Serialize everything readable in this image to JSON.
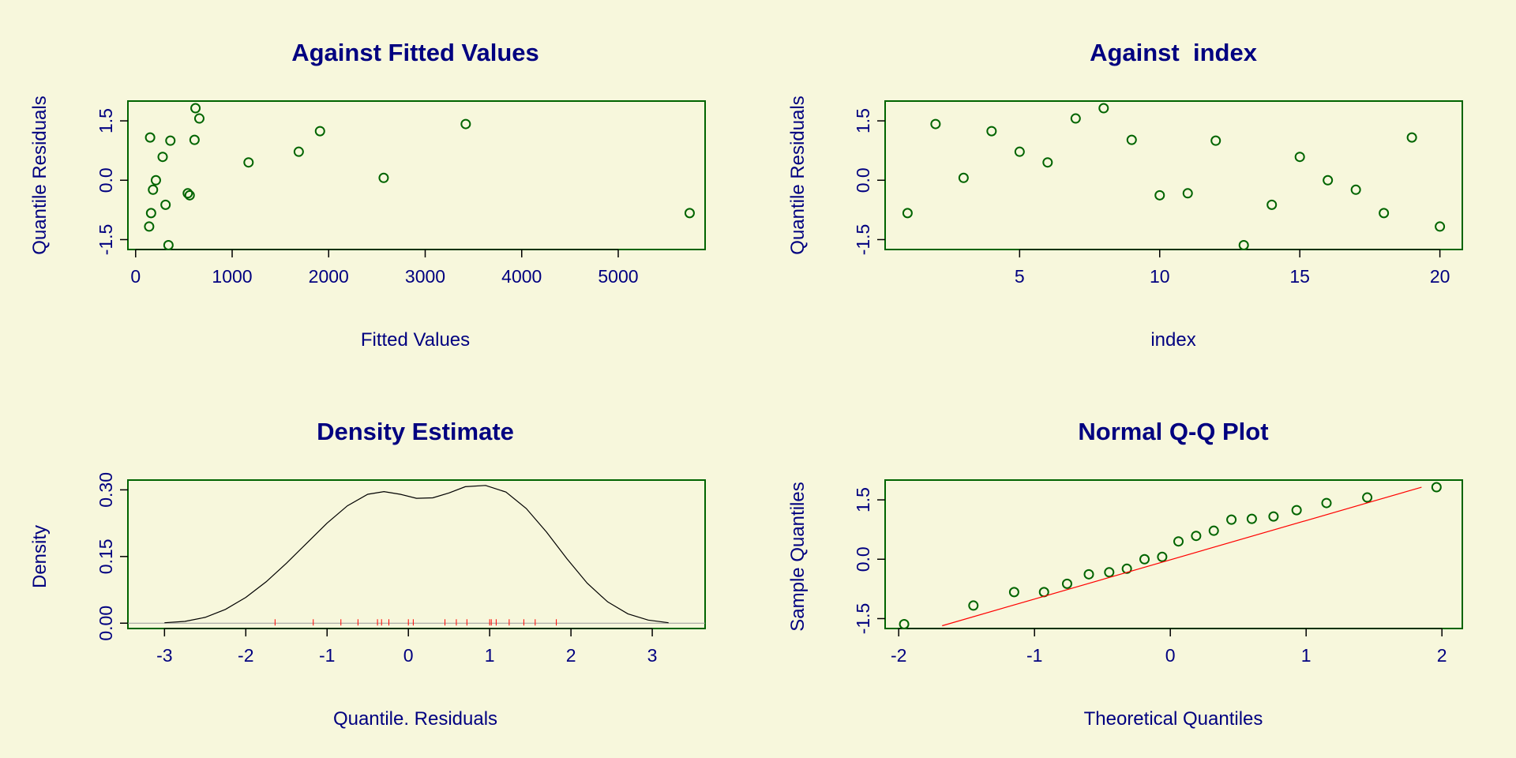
{
  "colors": {
    "background": "#f7f7dc",
    "frame": "#006400",
    "points": "#006400",
    "text": "#000080",
    "ref_line": "#ff0000",
    "density": "#000000",
    "rug": "#ff0000"
  },
  "chart_data": [
    {
      "type": "scatter",
      "title": "Against Fitted Values",
      "xlabel": "Fitted Values",
      "ylabel": "Quantile Residuals",
      "xlim": [
        -80,
        5900
      ],
      "ylim": [
        -1.75,
        2.0
      ],
      "xticks": [
        0,
        1000,
        2000,
        3000,
        4000,
        5000
      ],
      "xtick_labels": [
        "0",
        "1000",
        "2000",
        "3000",
        "4000",
        "5000"
      ],
      "yticks": [
        -1.5,
        0.0,
        1.5
      ],
      "ytick_labels": [
        "-1.5",
        "0.0",
        "1.5"
      ],
      "points": [
        [
          5740,
          -0.83
        ],
        [
          3420,
          1.42
        ],
        [
          2570,
          0.06
        ],
        [
          1910,
          1.24
        ],
        [
          1690,
          0.72
        ],
        [
          1170,
          0.45
        ],
        [
          660,
          1.56
        ],
        [
          620,
          1.82
        ],
        [
          610,
          1.02
        ],
        [
          560,
          -0.38
        ],
        [
          540,
          -0.33
        ],
        [
          360,
          1.0
        ],
        [
          340,
          -1.64
        ],
        [
          310,
          -0.62
        ],
        [
          280,
          0.59
        ],
        [
          210,
          0.0
        ],
        [
          180,
          -0.24
        ],
        [
          160,
          -0.83
        ],
        [
          150,
          1.08
        ],
        [
          140,
          -1.17
        ]
      ]
    },
    {
      "type": "scatter",
      "title": "Against  index",
      "xlabel": "index",
      "ylabel": "Quantile Residuals",
      "xlim": [
        0.2,
        20.8
      ],
      "ylim": [
        -1.75,
        2.0
      ],
      "xticks": [
        5,
        10,
        15,
        20
      ],
      "xtick_labels": [
        "5",
        "10",
        "15",
        "20"
      ],
      "yticks": [
        -1.5,
        0.0,
        1.5
      ],
      "ytick_labels": [
        "-1.5",
        "0.0",
        "1.5"
      ],
      "points": [
        [
          1,
          -0.83
        ],
        [
          2,
          1.42
        ],
        [
          3,
          0.06
        ],
        [
          4,
          1.24
        ],
        [
          5,
          0.72
        ],
        [
          6,
          0.45
        ],
        [
          7,
          1.56
        ],
        [
          8,
          1.82
        ],
        [
          9,
          1.02
        ],
        [
          10,
          -0.38
        ],
        [
          11,
          -0.33
        ],
        [
          12,
          1.0
        ],
        [
          13,
          -1.64
        ],
        [
          14,
          -0.62
        ],
        [
          15,
          0.59
        ],
        [
          16,
          0.0
        ],
        [
          17,
          -0.24
        ],
        [
          18,
          -0.83
        ],
        [
          19,
          1.08
        ],
        [
          20,
          -1.17
        ]
      ]
    },
    {
      "type": "line",
      "title": "Density Estimate",
      "xlabel": "Quantile. Residuals",
      "ylabel": "Density",
      "xlim": [
        -3.45,
        3.65
      ],
      "ylim": [
        -0.012,
        0.322
      ],
      "xticks": [
        -3,
        -2,
        -1,
        0,
        1,
        2,
        3
      ],
      "xtick_labels": [
        "-3",
        "-2",
        "-1",
        "0",
        "1",
        "2",
        "3"
      ],
      "yticks": [
        0.0,
        0.15,
        0.3
      ],
      "ytick_labels": [
        "0.00",
        "0.15",
        "0.30"
      ],
      "density": [
        [
          -3.0,
          0.001
        ],
        [
          -2.75,
          0.004
        ],
        [
          -2.5,
          0.013
        ],
        [
          -2.25,
          0.031
        ],
        [
          -2.0,
          0.058
        ],
        [
          -1.75,
          0.093
        ],
        [
          -1.5,
          0.135
        ],
        [
          -1.25,
          0.18
        ],
        [
          -1.0,
          0.225
        ],
        [
          -0.75,
          0.264
        ],
        [
          -0.5,
          0.29
        ],
        [
          -0.3,
          0.296
        ],
        [
          -0.1,
          0.29
        ],
        [
          0.1,
          0.281
        ],
        [
          0.3,
          0.282
        ],
        [
          0.5,
          0.293
        ],
        [
          0.7,
          0.307
        ],
        [
          0.95,
          0.31
        ],
        [
          1.2,
          0.295
        ],
        [
          1.45,
          0.258
        ],
        [
          1.7,
          0.205
        ],
        [
          1.95,
          0.145
        ],
        [
          2.2,
          0.09
        ],
        [
          2.45,
          0.048
        ],
        [
          2.7,
          0.021
        ],
        [
          2.95,
          0.007
        ],
        [
          3.2,
          0.001
        ]
      ],
      "rug": [
        -1.64,
        -1.17,
        -0.83,
        -0.62,
        -0.38,
        -0.33,
        -0.24,
        0.0,
        0.06,
        0.45,
        0.59,
        0.72,
        1.0,
        1.02,
        1.08,
        1.24,
        1.42,
        1.56,
        1.82
      ]
    },
    {
      "type": "scatter",
      "title": "Normal Q-Q Plot",
      "xlabel": "Theoretical Quantiles",
      "ylabel": "Sample Quantiles",
      "xlim": [
        -2.1,
        2.15
      ],
      "ylim": [
        -1.75,
        2.0
      ],
      "xticks": [
        -2,
        -1,
        0,
        1,
        2
      ],
      "xtick_labels": [
        "-2",
        "-1",
        "0",
        "1",
        "2"
      ],
      "yticks": [
        -1.5,
        0.0,
        1.5
      ],
      "ytick_labels": [
        "-1.5",
        "0.0",
        "1.5"
      ],
      "points": [
        [
          -1.96,
          -1.64
        ],
        [
          -1.45,
          -1.17
        ],
        [
          -1.15,
          -0.83
        ],
        [
          -0.93,
          -0.83
        ],
        [
          -0.76,
          -0.62
        ],
        [
          -0.6,
          -0.38
        ],
        [
          -0.45,
          -0.33
        ],
        [
          -0.32,
          -0.24
        ],
        [
          -0.19,
          0.0
        ],
        [
          -0.06,
          0.06
        ],
        [
          0.06,
          0.45
        ],
        [
          0.19,
          0.59
        ],
        [
          0.32,
          0.72
        ],
        [
          0.45,
          1.0
        ],
        [
          0.6,
          1.02
        ],
        [
          0.76,
          1.08
        ],
        [
          0.93,
          1.24
        ],
        [
          1.15,
          1.42
        ],
        [
          1.45,
          1.56
        ],
        [
          1.96,
          1.82
        ]
      ],
      "ref_line": [
        [
          -1.68,
          -1.68
        ],
        [
          1.85,
          1.82
        ]
      ]
    }
  ]
}
